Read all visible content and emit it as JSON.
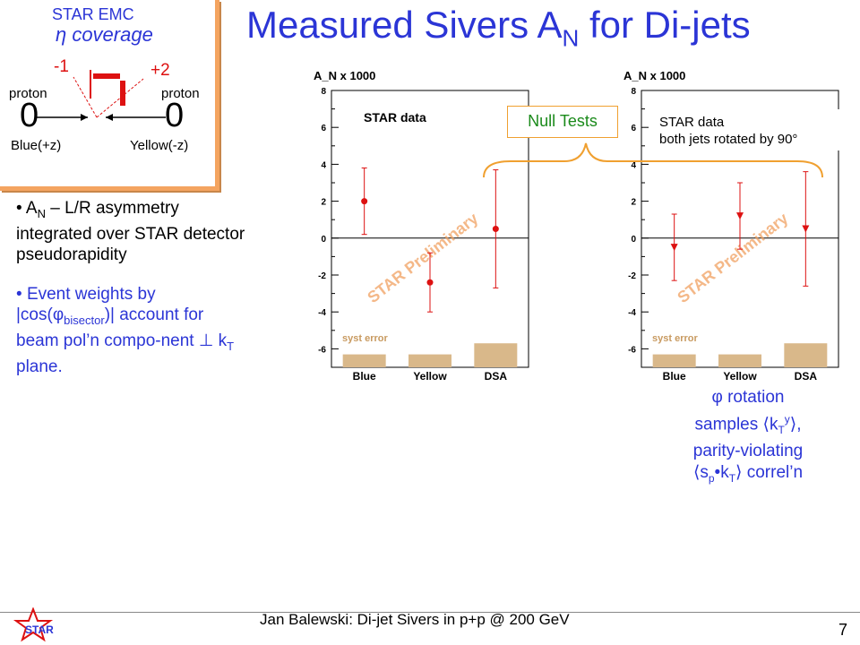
{
  "title_main": "Measured Sivers A",
  "title_sub": "N",
  "title_end": " for Di-jets",
  "emc": {
    "heading": "STAR EMC",
    "coverage": "η coverage",
    "minus": "-1",
    "plus": "+2",
    "proton_left": "proton",
    "proton_right": "proton",
    "zero_left": "0",
    "zero_right": "0",
    "blue_beam": "Blue(+z)",
    "yellow_beam": "Yellow(-z)"
  },
  "bullet1": {
    "a": "A",
    "a_sub": "N",
    "rest": " – L/R asymmetry integrated over STAR detector pseudorapidity"
  },
  "bullet2": {
    "line1": "Event weights by |cos(",
    "phi": "φ",
    "phi_sub": "bisector",
    "line2": ")| account for beam pol’n compo-nent ⊥ k",
    "k_sub": "T",
    "line3": " plane."
  },
  "null_tests": "Null Tests",
  "rotation_note": {
    "l1": "φ rotation",
    "l2a": "samples ⟨k",
    "l2sub": "T",
    "l2sup": "y",
    "l2b": "⟩,",
    "l3": "parity-violating",
    "l4a": "⟨s",
    "l4sub1": "p",
    "l4b": "•k",
    "l4sub2": "T",
    "l4c": "⟩ correl’n"
  },
  "footer": "Jan Balewski: Di-jet Sivers in p+p @ 200 GeV",
  "page_number": "7",
  "logo_text": "STAR",
  "chart_data": [
    {
      "type": "scatter",
      "ylabel": "A_N x 1000",
      "label": "STAR data",
      "watermark": "STAR Preliminary",
      "syst_label": "syst error",
      "categories": [
        "Blue",
        "Yellow",
        "DSA"
      ],
      "ylim": [
        -7,
        8
      ],
      "yticks": [
        -6,
        -4,
        -2,
        0,
        2,
        4,
        6,
        8
      ],
      "values": [
        2.0,
        -2.4,
        0.5
      ],
      "errors": [
        1.8,
        1.6,
        3.2
      ],
      "syst": [
        0.35,
        0.35,
        0.65
      ],
      "marker": "circle",
      "color": "#dd1111"
    },
    {
      "type": "scatter",
      "ylabel": "A_N x 1000",
      "label": "STAR data",
      "label2": "both jets rotated by 90°",
      "watermark": "STAR Preliminary",
      "syst_label": "syst error",
      "categories": [
        "Blue",
        "Yellow",
        "DSA"
      ],
      "ylim": [
        -7,
        8
      ],
      "yticks": [
        -6,
        -4,
        -2,
        0,
        2,
        4,
        6,
        8
      ],
      "values": [
        -0.5,
        1.2,
        0.5
      ],
      "errors": [
        1.8,
        1.8,
        3.1
      ],
      "syst": [
        0.35,
        0.35,
        0.65
      ],
      "marker": "triangle-down",
      "color": "#dd1111"
    }
  ]
}
